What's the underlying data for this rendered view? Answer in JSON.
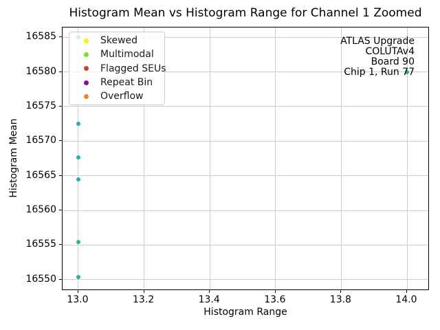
{
  "chart_data": {
    "type": "scatter",
    "title": "Histogram Mean vs Histogram Range for Channel 1 Zoomed",
    "xlabel": "Histogram Range",
    "ylabel": "Histogram Mean",
    "xlim": [
      12.952,
      14.069
    ],
    "ylim": [
      16548.4,
      16586.4
    ],
    "xticks": [
      13.0,
      13.2,
      13.4,
      13.6,
      13.8,
      14.0
    ],
    "yticks": [
      16550,
      16555,
      16560,
      16565,
      16570,
      16575,
      16580,
      16585
    ],
    "grid": true,
    "point_color": "#20b2aa",
    "series": [
      {
        "name": "data",
        "points": [
          {
            "x": 13.0,
            "y": 16585.0
          },
          {
            "x": 13.0,
            "y": 16572.5
          },
          {
            "x": 13.0,
            "y": 16567.6
          },
          {
            "x": 13.0,
            "y": 16564.5
          },
          {
            "x": 13.0,
            "y": 16555.4
          },
          {
            "x": 13.0,
            "y": 16550.4
          },
          {
            "x": 14.0,
            "y": 16580.0
          }
        ]
      }
    ],
    "legend": {
      "position": "upper-left",
      "entries": [
        {
          "label": "Skewed",
          "color": "#f7f306"
        },
        {
          "label": "Multimodal",
          "color": "#77e519"
        },
        {
          "label": "Flagged SEUs",
          "color": "#cf3a31"
        },
        {
          "label": "Repeat Bin",
          "color": "#8309a8"
        },
        {
          "label": "Overflow",
          "color": "#f0861c"
        }
      ]
    },
    "annotation": {
      "lines": [
        "ATLAS Upgrade",
        "COLUTAv4",
        "Board 90",
        "Chip 1, Run 77"
      ]
    }
  }
}
